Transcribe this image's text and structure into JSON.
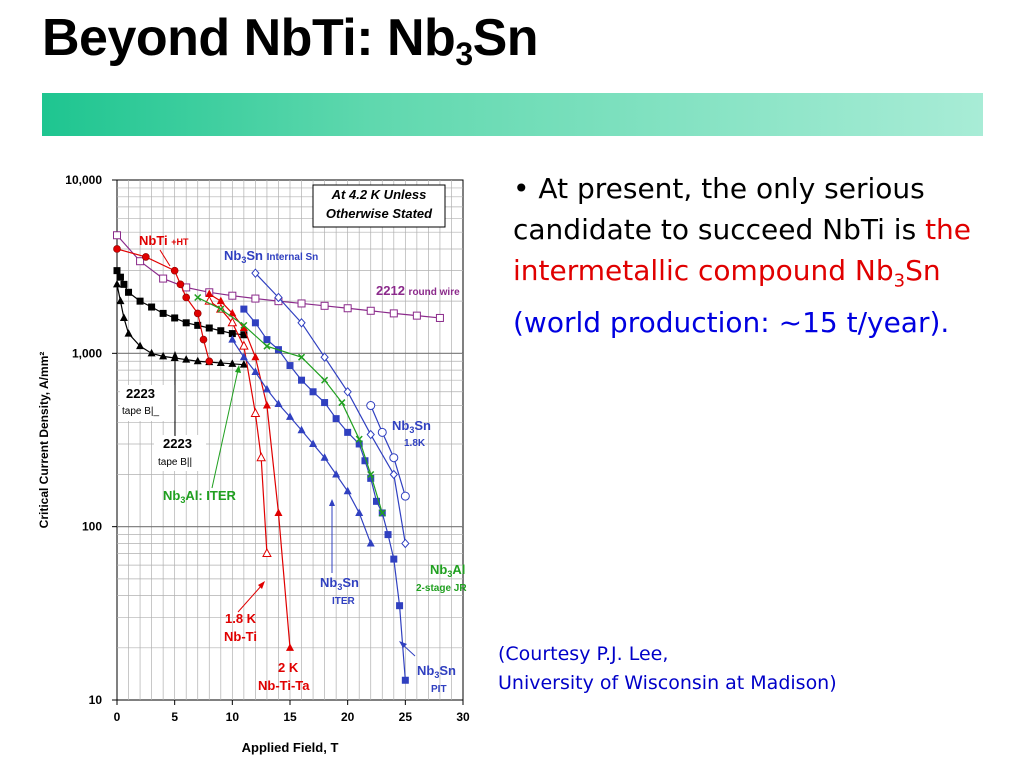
{
  "slide": {
    "title_main": "Beyond NbTi: Nb",
    "title_sub": "3",
    "title_end": "Sn",
    "bullet": {
      "marker": "•",
      "text1": "At present, the only serious candidate to succeed NbTi is",
      "red1": "the intermetallic compound",
      "red2": "Nb",
      "red_sub": "3",
      "red3": "Sn",
      "blue": "(world production: ~15 t/year)."
    },
    "courtesy_line1": "(Courtesy P.J. Lee,",
    "courtesy_line2": "University of Wisconsin at Madison)",
    "colors": {
      "accent_bar": "#1ec590",
      "red": "#e00000",
      "blue": "#0000e0"
    }
  },
  "chart_data": {
    "type": "line",
    "title": "At 4.2 K Unless Otherwise Stated",
    "xlabel": "Applied Field, T",
    "ylabel": "Critical Current Density, A/mm²",
    "xlim": [
      0,
      30
    ],
    "ylim": [
      10,
      10000
    ],
    "yscale": "log",
    "grid": true,
    "x_ticks": [
      "0",
      "5",
      "10",
      "15",
      "20",
      "25",
      "30"
    ],
    "y_ticks": [
      "10",
      "100",
      "1,000",
      "10,000"
    ],
    "series": [
      {
        "id": "bi2212",
        "name": "2212",
        "name_small": "round wire",
        "color": "#8b2a8b",
        "marker": "square-open",
        "x": [
          0,
          2,
          4,
          6,
          8,
          10,
          12,
          14,
          16,
          18,
          20,
          22,
          24,
          26,
          28
        ],
        "y": [
          4800,
          3400,
          2700,
          2400,
          2250,
          2150,
          2070,
          2000,
          1940,
          1880,
          1820,
          1760,
          1700,
          1650,
          1600
        ]
      },
      {
        "id": "bi2223_perp",
        "name": "2223",
        "name_small": "tape B|_",
        "color": "#000000",
        "marker": "square-filled",
        "x": [
          0,
          0.3,
          0.6,
          1,
          2,
          3,
          4,
          5,
          6,
          7,
          8,
          9,
          10,
          11
        ],
        "y": [
          3000,
          2750,
          2500,
          2250,
          2000,
          1850,
          1700,
          1600,
          1500,
          1450,
          1400,
          1350,
          1300,
          1280
        ]
      },
      {
        "id": "bi2223_par",
        "name": "2223",
        "name_small": "tape B||",
        "color": "#000000",
        "marker": "triangle-filled",
        "x": [
          0,
          0.3,
          0.6,
          1,
          2,
          3,
          4,
          5,
          6,
          7,
          8,
          9,
          10,
          11
        ],
        "y": [
          2500,
          2000,
          1600,
          1300,
          1100,
          1000,
          960,
          940,
          920,
          900,
          890,
          880,
          870,
          860
        ]
      },
      {
        "id": "nbti_ht",
        "name": "NbTi",
        "name_small": "+HT",
        "color": "#e00000",
        "marker": "circle-filled",
        "x": [
          0,
          2.5,
          5,
          5.5,
          6,
          7,
          7.5,
          8
        ],
        "y": [
          4000,
          3600,
          3000,
          2500,
          2100,
          1700,
          1200,
          900
        ]
      },
      {
        "id": "nbti_18k",
        "name": "1.8 K",
        "name_small": "Nb-Ti",
        "color": "#e00000",
        "marker": "triangle-open",
        "x": [
          8,
          9,
          10,
          11,
          12,
          12.5,
          13
        ],
        "y": [
          2000,
          1800,
          1500,
          1100,
          450,
          250,
          70
        ]
      },
      {
        "id": "nbtita_2k",
        "name": "2 K",
        "name_small": "Nb-Ti-Ta",
        "color": "#e00000",
        "marker": "triangle-filled",
        "x": [
          8,
          9,
          10,
          11,
          12,
          13,
          14,
          15
        ],
        "y": [
          2200,
          2000,
          1700,
          1400,
          950,
          500,
          120,
          20
        ]
      },
      {
        "id": "nb3sn_internal",
        "name": "Nb3Sn",
        "name_small": "Internal Sn",
        "color": "#3040c0",
        "marker": "diamond-open",
        "x": [
          12,
          14,
          16,
          18,
          20,
          22,
          24,
          25
        ],
        "y": [
          2900,
          2100,
          1500,
          950,
          600,
          340,
          200,
          80
        ]
      },
      {
        "id": "nb3sn_18k",
        "name": "Nb3Sn",
        "name_small": "1.8K",
        "color": "#3040c0",
        "marker": "circle-open",
        "x": [
          22,
          23,
          24,
          25
        ],
        "y": [
          500,
          350,
          250,
          150
        ]
      },
      {
        "id": "nb3sn_iter",
        "name": "Nb3Sn",
        "name_small": "ITER",
        "color": "#3040c0",
        "marker": "triangle-filled",
        "x": [
          10,
          11,
          12,
          13,
          14,
          15,
          16,
          17,
          18,
          19,
          20,
          21,
          22
        ],
        "y": [
          1200,
          950,
          780,
          620,
          510,
          430,
          360,
          300,
          250,
          200,
          160,
          120,
          80
        ]
      },
      {
        "id": "nb3sn_pit",
        "name": "Nb3Sn",
        "name_small": "PIT",
        "color": "#3040c0",
        "marker": "square-filled",
        "x": [
          11,
          12,
          13,
          14,
          15,
          16,
          17,
          18,
          19,
          20,
          21,
          21.5,
          22,
          22.5,
          23,
          23.5,
          24,
          24.5,
          25
        ],
        "y": [
          1800,
          1500,
          1200,
          1050,
          850,
          700,
          600,
          520,
          420,
          350,
          300,
          240,
          190,
          140,
          120,
          90,
          65,
          35,
          13
        ]
      },
      {
        "id": "nb3al_2stage",
        "name": "Nb3Al",
        "name_small": "2-stage JR",
        "color": "#20a020",
        "marker": "x",
        "x": [
          7,
          9,
          11,
          13,
          16,
          18,
          19.5,
          21,
          22,
          23
        ],
        "y": [
          2100,
          1800,
          1450,
          1100,
          950,
          700,
          520,
          320,
          200,
          120
        ]
      }
    ],
    "annotations": [
      {
        "text": "Nb3Al: ITER",
        "color": "#20a020"
      }
    ]
  }
}
